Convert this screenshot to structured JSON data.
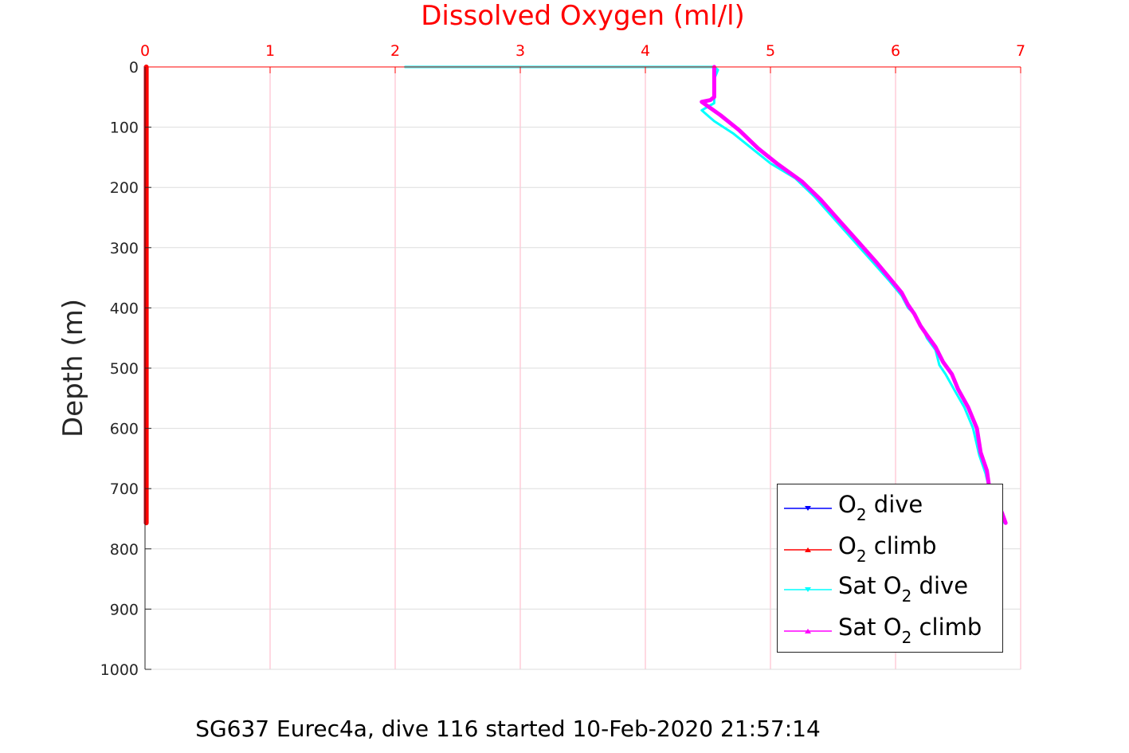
{
  "chart_data": {
    "type": "line",
    "title": "",
    "xlabel": "Dissolved Oxygen (ml/l)",
    "ylabel": "Depth (m)",
    "caption": "SG637 Eurec4a, dive 116 started 10-Feb-2020 21:57:14",
    "xlim": [
      0,
      7
    ],
    "ylim": [
      0,
      1000
    ],
    "y_reversed": true,
    "x_axis_position": "top",
    "xticks": [
      "0",
      "1",
      "2",
      "3",
      "4",
      "5",
      "6",
      "7"
    ],
    "yticks": [
      "0",
      "100",
      "200",
      "300",
      "400",
      "500",
      "600",
      "700",
      "800",
      "900",
      "1000"
    ],
    "grid": true,
    "legend_position": "bottom-right",
    "colors": {
      "axis_x": "#ff0000",
      "axis_y": "#262626",
      "grid_x": "#ffb3c6",
      "grid_y": "#dddddd"
    },
    "legend": [
      {
        "prefix": "O",
        "sub": "2",
        "suffix": " dive",
        "color": "#0000ff",
        "marker": "triangle-down"
      },
      {
        "prefix": "O",
        "sub": "2",
        "suffix": " climb",
        "color": "#ff0000",
        "marker": "triangle-up"
      },
      {
        "prefix": "Sat O",
        "sub": "2",
        "suffix": " dive",
        "color": "#00ffff",
        "marker": "triangle-down"
      },
      {
        "prefix": "Sat O",
        "sub": "2",
        "suffix": " climb",
        "color": "#ff00ff",
        "marker": "triangle-up"
      }
    ],
    "series": [
      {
        "name": "O2 dive",
        "color": "#0000ff",
        "width": 3,
        "points": [
          [
            0,
            0
          ],
          [
            0,
            757
          ]
        ]
      },
      {
        "name": "O2 climb",
        "color": "#ff0000",
        "width": 6,
        "points": [
          [
            0.01,
            0
          ],
          [
            0.01,
            200
          ],
          [
            0.01,
            400
          ],
          [
            0.01,
            600
          ],
          [
            0.01,
            757
          ]
        ]
      },
      {
        "name": "Sat O2 dive",
        "color": "#00ffff",
        "width": 3,
        "points": [
          [
            2.08,
            0
          ],
          [
            4.2,
            0
          ],
          [
            4.55,
            0
          ],
          [
            4.58,
            5
          ],
          [
            4.55,
            20
          ],
          [
            4.55,
            40
          ],
          [
            4.55,
            60
          ],
          [
            4.45,
            72
          ],
          [
            4.55,
            90
          ],
          [
            4.7,
            110
          ],
          [
            4.85,
            135
          ],
          [
            5.0,
            160
          ],
          [
            5.2,
            185
          ],
          [
            5.35,
            215
          ],
          [
            5.5,
            250
          ],
          [
            5.65,
            285
          ],
          [
            5.8,
            320
          ],
          [
            5.95,
            355
          ],
          [
            6.05,
            380
          ],
          [
            6.1,
            400
          ],
          [
            6.15,
            410
          ],
          [
            6.22,
            435
          ],
          [
            6.25,
            450
          ],
          [
            6.32,
            470
          ],
          [
            6.35,
            495
          ],
          [
            6.4,
            510
          ],
          [
            6.48,
            540
          ],
          [
            6.55,
            565
          ],
          [
            6.62,
            600
          ],
          [
            6.67,
            645
          ],
          [
            6.72,
            675
          ],
          [
            6.76,
            710
          ],
          [
            6.85,
            740
          ],
          [
            6.87,
            757
          ]
        ]
      },
      {
        "name": "Sat O2 climb",
        "color": "#ff00ff",
        "width": 5,
        "points": [
          [
            4.55,
            0
          ],
          [
            4.55,
            20
          ],
          [
            4.55,
            50
          ],
          [
            4.52,
            55
          ],
          [
            4.45,
            58
          ],
          [
            4.6,
            80
          ],
          [
            4.75,
            105
          ],
          [
            4.9,
            135
          ],
          [
            5.05,
            160
          ],
          [
            5.25,
            190
          ],
          [
            5.4,
            220
          ],
          [
            5.55,
            255
          ],
          [
            5.7,
            290
          ],
          [
            5.85,
            325
          ],
          [
            5.95,
            350
          ],
          [
            6.05,
            375
          ],
          [
            6.1,
            395
          ],
          [
            6.15,
            410
          ],
          [
            6.2,
            430
          ],
          [
            6.25,
            445
          ],
          [
            6.32,
            465
          ],
          [
            6.38,
            490
          ],
          [
            6.45,
            510
          ],
          [
            6.5,
            535
          ],
          [
            6.58,
            565
          ],
          [
            6.65,
            600
          ],
          [
            6.68,
            640
          ],
          [
            6.73,
            670
          ],
          [
            6.75,
            700
          ],
          [
            6.85,
            740
          ],
          [
            6.88,
            757
          ]
        ]
      }
    ]
  }
}
